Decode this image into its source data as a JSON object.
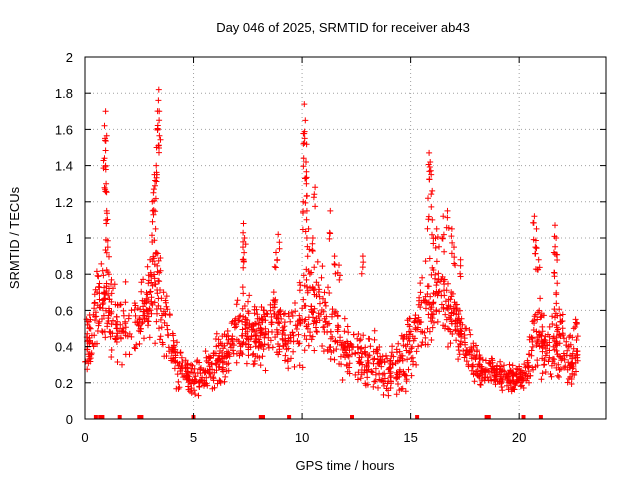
{
  "chart_data": {
    "type": "scatter",
    "title": "Day 046 of 2025, SRMTID for receiver ab43",
    "xlabel": "GPS time / hours",
    "ylabel": "SRMTID / TECUs",
    "xlim": [
      0,
      24
    ],
    "ylim": [
      0,
      2
    ],
    "xticks": [
      0,
      5,
      10,
      15,
      20
    ],
    "yticks": [
      0,
      0.2,
      0.4,
      0.6,
      0.8,
      1,
      1.2,
      1.4,
      1.6,
      1.8,
      2
    ],
    "grid": true,
    "marker": "+",
    "color": "#ff0000",
    "series": [
      {
        "name": "SRMTID",
        "envelope": [
          {
            "x": 0.0,
            "low": 0.25,
            "high": 0.55
          },
          {
            "x": 0.3,
            "low": 0.25,
            "high": 0.6
          },
          {
            "x": 0.5,
            "low": 0.3,
            "high": 0.85
          },
          {
            "x": 0.9,
            "low": 0.45,
            "high": 0.9
          },
          {
            "x": 1.2,
            "low": 0.3,
            "high": 0.8
          },
          {
            "x": 1.6,
            "low": 0.25,
            "high": 0.75
          },
          {
            "x": 2.0,
            "low": 0.3,
            "high": 0.8
          },
          {
            "x": 2.5,
            "low": 0.35,
            "high": 0.75
          },
          {
            "x": 3.0,
            "low": 0.4,
            "high": 0.95
          },
          {
            "x": 3.4,
            "low": 0.4,
            "high": 1.0
          },
          {
            "x": 3.8,
            "low": 0.3,
            "high": 0.7
          },
          {
            "x": 4.2,
            "low": 0.15,
            "high": 0.45
          },
          {
            "x": 4.8,
            "low": 0.12,
            "high": 0.35
          },
          {
            "x": 5.3,
            "low": 0.1,
            "high": 0.35
          },
          {
            "x": 5.8,
            "low": 0.12,
            "high": 0.45
          },
          {
            "x": 6.3,
            "low": 0.15,
            "high": 0.5
          },
          {
            "x": 6.8,
            "low": 0.25,
            "high": 0.6
          },
          {
            "x": 7.3,
            "low": 0.3,
            "high": 0.75
          },
          {
            "x": 7.8,
            "low": 0.25,
            "high": 0.65
          },
          {
            "x": 8.3,
            "low": 0.25,
            "high": 0.7
          },
          {
            "x": 8.8,
            "low": 0.3,
            "high": 0.85
          },
          {
            "x": 9.3,
            "low": 0.25,
            "high": 0.65
          },
          {
            "x": 9.8,
            "low": 0.25,
            "high": 0.8
          },
          {
            "x": 10.3,
            "low": 0.3,
            "high": 0.95
          },
          {
            "x": 10.8,
            "low": 0.3,
            "high": 0.9
          },
          {
            "x": 11.3,
            "low": 0.25,
            "high": 0.8
          },
          {
            "x": 11.8,
            "low": 0.2,
            "high": 0.6
          },
          {
            "x": 12.3,
            "low": 0.2,
            "high": 0.55
          },
          {
            "x": 12.8,
            "low": 0.15,
            "high": 0.55
          },
          {
            "x": 13.3,
            "low": 0.15,
            "high": 0.5
          },
          {
            "x": 13.8,
            "low": 0.12,
            "high": 0.45
          },
          {
            "x": 14.3,
            "low": 0.1,
            "high": 0.45
          },
          {
            "x": 14.8,
            "low": 0.1,
            "high": 0.55
          },
          {
            "x": 15.3,
            "low": 0.25,
            "high": 0.75
          },
          {
            "x": 15.8,
            "low": 0.35,
            "high": 0.95
          },
          {
            "x": 16.3,
            "low": 0.4,
            "high": 1.05
          },
          {
            "x": 16.8,
            "low": 0.35,
            "high": 0.85
          },
          {
            "x": 17.3,
            "low": 0.3,
            "high": 0.65
          },
          {
            "x": 17.8,
            "low": 0.2,
            "high": 0.5
          },
          {
            "x": 18.3,
            "low": 0.15,
            "high": 0.4
          },
          {
            "x": 18.8,
            "low": 0.15,
            "high": 0.35
          },
          {
            "x": 19.3,
            "low": 0.15,
            "high": 0.33
          },
          {
            "x": 19.8,
            "low": 0.15,
            "high": 0.3
          },
          {
            "x": 20.3,
            "low": 0.15,
            "high": 0.33
          },
          {
            "x": 20.8,
            "low": 0.2,
            "high": 0.75
          },
          {
            "x": 21.3,
            "low": 0.2,
            "high": 0.55
          },
          {
            "x": 21.8,
            "low": 0.2,
            "high": 0.7
          },
          {
            "x": 22.3,
            "low": 0.15,
            "high": 0.5
          },
          {
            "x": 22.7,
            "low": 0.2,
            "high": 0.55
          }
        ],
        "peaks": [
          {
            "x": 0.95,
            "y": 1.7
          },
          {
            "x": 0.9,
            "y": 1.62
          },
          {
            "x": 0.92,
            "y": 1.55
          },
          {
            "x": 0.95,
            "y": 1.4
          },
          {
            "x": 0.97,
            "y": 1.3
          },
          {
            "x": 1.0,
            "y": 1.15
          },
          {
            "x": 0.98,
            "y": 1.08
          },
          {
            "x": 1.05,
            "y": 0.95
          },
          {
            "x": 3.4,
            "y": 1.82
          },
          {
            "x": 3.38,
            "y": 1.76
          },
          {
            "x": 3.42,
            "y": 1.7
          },
          {
            "x": 3.35,
            "y": 1.6
          },
          {
            "x": 3.3,
            "y": 1.5
          },
          {
            "x": 3.28,
            "y": 1.4
          },
          {
            "x": 3.2,
            "y": 1.35
          },
          {
            "x": 3.15,
            "y": 1.25
          },
          {
            "x": 3.12,
            "y": 1.15
          },
          {
            "x": 3.25,
            "y": 1.05
          },
          {
            "x": 3.0,
            "y": 0.88
          },
          {
            "x": 7.3,
            "y": 1.08
          },
          {
            "x": 7.35,
            "y": 1.0
          },
          {
            "x": 7.28,
            "y": 0.95
          },
          {
            "x": 8.8,
            "y": 0.92
          },
          {
            "x": 8.9,
            "y": 1.02
          },
          {
            "x": 10.1,
            "y": 1.74
          },
          {
            "x": 10.15,
            "y": 1.65
          },
          {
            "x": 10.12,
            "y": 1.55
          },
          {
            "x": 10.18,
            "y": 1.42
          },
          {
            "x": 10.2,
            "y": 1.3
          },
          {
            "x": 10.05,
            "y": 1.2
          },
          {
            "x": 10.22,
            "y": 1.15
          },
          {
            "x": 10.6,
            "y": 1.28
          },
          {
            "x": 10.3,
            "y": 1.05
          },
          {
            "x": 10.5,
            "y": 1.0
          },
          {
            "x": 11.3,
            "y": 1.15
          },
          {
            "x": 11.5,
            "y": 0.9
          },
          {
            "x": 11.7,
            "y": 0.85
          },
          {
            "x": 12.8,
            "y": 0.9
          },
          {
            "x": 15.85,
            "y": 1.47
          },
          {
            "x": 15.9,
            "y": 1.42
          },
          {
            "x": 15.95,
            "y": 1.35
          },
          {
            "x": 15.8,
            "y": 1.22
          },
          {
            "x": 16.0,
            "y": 1.1
          },
          {
            "x": 16.2,
            "y": 1.05
          },
          {
            "x": 16.5,
            "y": 1.12
          },
          {
            "x": 16.7,
            "y": 1.15
          },
          {
            "x": 16.9,
            "y": 1.05
          },
          {
            "x": 17.0,
            "y": 0.95
          },
          {
            "x": 17.3,
            "y": 0.88
          },
          {
            "x": 20.7,
            "y": 1.12
          },
          {
            "x": 20.8,
            "y": 1.05
          },
          {
            "x": 20.75,
            "y": 0.95
          },
          {
            "x": 20.9,
            "y": 0.88
          },
          {
            "x": 21.65,
            "y": 1.07
          },
          {
            "x": 21.7,
            "y": 1.0
          },
          {
            "x": 21.6,
            "y": 0.92
          },
          {
            "x": 21.75,
            "y": 0.75
          },
          {
            "x": 22.6,
            "y": 0.55
          }
        ],
        "zero_markers_x": [
          0.5,
          0.7,
          0.8,
          1.6,
          2.5,
          2.6,
          5.0,
          8.1,
          8.2,
          9.4,
          12.3,
          15.3,
          18.5,
          18.6,
          20.2,
          21.0
        ]
      }
    ]
  }
}
